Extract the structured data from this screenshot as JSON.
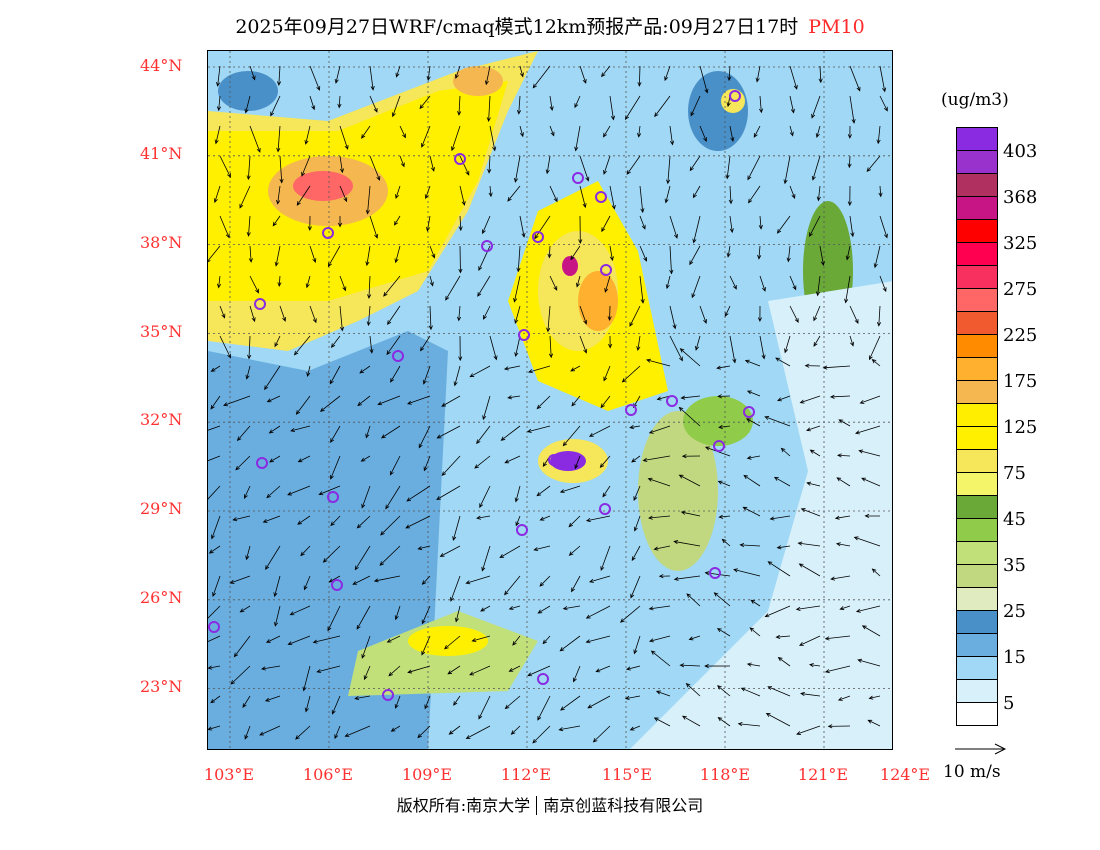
{
  "title": {
    "text": "2025年09月27日WRF/cmaq模式12km预报产品:09月27日17时",
    "pollutant": "PM10"
  },
  "lat_labels": [
    "44°N",
    "41°N",
    "38°N",
    "35°N",
    "32°N",
    "29°N",
    "26°N",
    "23°N"
  ],
  "lon_labels": [
    "103°E",
    "106°E",
    "109°E",
    "112°E",
    "115°E",
    "118°E",
    "121°E",
    "124°E"
  ],
  "legend": {
    "unit": "(ug/m3)",
    "colors": [
      "#8a2be2",
      "#9932cc",
      "#b03060",
      "#c71585",
      "#ff0000",
      "#ff0050",
      "#f83060",
      "#ff6666",
      "#f05a2e",
      "#ff8c00",
      "#ffb02e",
      "#f5b850",
      "#ffee00",
      "#fff000",
      "#f5e65a",
      "#f5f56a",
      "#6aa838",
      "#90cc4a",
      "#c2e07a",
      "#c2d880",
      "#e0ebc0",
      "#4a90c8",
      "#6aaee0",
      "#a0d8f5",
      "#d8f0fa",
      "#ffffff"
    ],
    "labels": [
      "403",
      "368",
      "325",
      "275",
      "225",
      "175",
      "125",
      "75",
      "45",
      "35",
      "25",
      "15",
      "5"
    ]
  },
  "wind_reference": "10 m/s",
  "footer": {
    "left": "版权所有:南京大学",
    "right": "南京创蓝科技有限公司"
  }
}
